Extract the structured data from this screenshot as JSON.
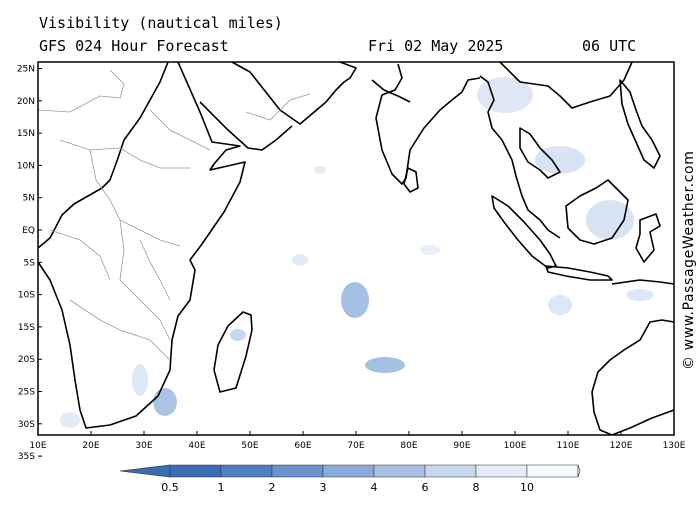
{
  "header": {
    "title": "Visibility (nautical miles)",
    "subtitle": "GFS 024 Hour Forecast",
    "date": "Fri 02 May 2025",
    "time": "06 UTC"
  },
  "credit": "© www.PassageWeather.com",
  "lat_labels": [
    "25N",
    "20N",
    "15N",
    "10N",
    "5N",
    "EQ",
    "5S",
    "10S",
    "15S",
    "20S",
    "25S",
    "30S",
    "35S"
  ],
  "lon_labels": [
    "10E",
    "20E",
    "30E",
    "40E",
    "50E",
    "60E",
    "70E",
    "80E",
    "90E",
    "100E",
    "110E",
    "120E",
    "130E"
  ],
  "legend": {
    "ticks": [
      "0.5",
      "1",
      "2",
      "3",
      "4",
      "6",
      "8",
      "10"
    ],
    "colors": [
      "#3a6db5",
      "#4f7ec1",
      "#6a93cd",
      "#8aaad8",
      "#a8c0e3",
      "#c7d8ee",
      "#e2ebf6",
      "#f6f9fd"
    ]
  },
  "colors": {
    "coast": "#000000",
    "border": "#9a9a9a",
    "haze": "#8fb0de"
  }
}
